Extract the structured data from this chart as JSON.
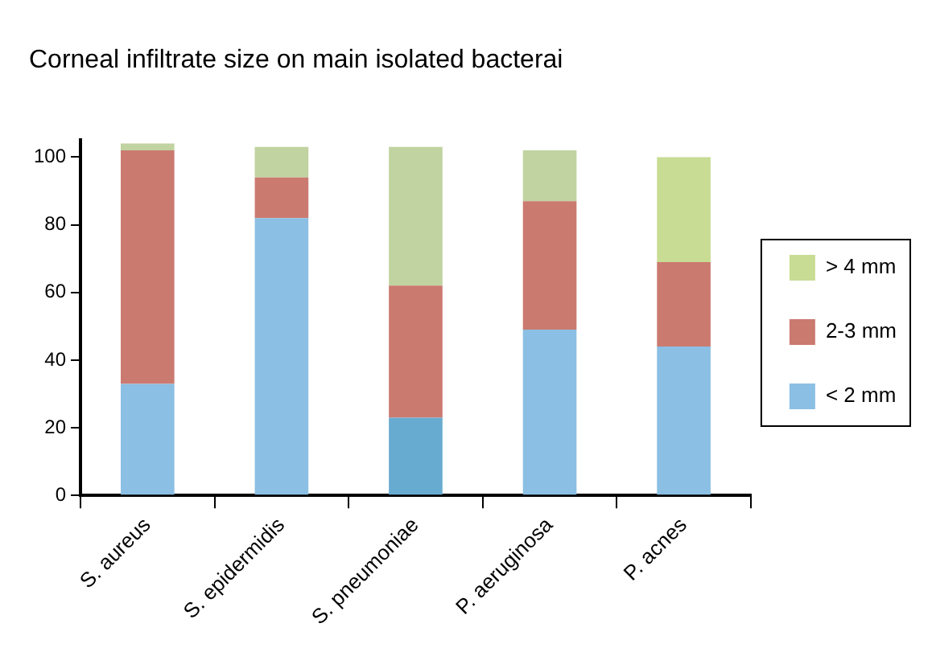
{
  "chart_data": {
    "type": "bar",
    "title": "Corneal infiltrate size on main isolated bacterai",
    "categories": [
      "S. aureus",
      "S. epidermidis",
      "S. pneumoniae",
      "P. aeruginosa",
      "P. acnes"
    ],
    "stacked": true,
    "series": [
      {
        "name": "< 2 mm",
        "color": "#8bbfe3",
        "colors": [
          "#8bbfe3",
          "#8bbfe3",
          "#68abd0",
          "#8bbfe3",
          "#8bbfe3"
        ],
        "values": [
          33,
          82,
          23,
          49,
          44
        ]
      },
      {
        "name": "2-3 mm",
        "color": "#cb7a70",
        "values": [
          69,
          12,
          39,
          38,
          25
        ]
      },
      {
        "name": "> 4 mm",
        "color": "#c8dc94",
        "colors": [
          "#c0d3a0",
          "#c0d3a0",
          "#c0d3a0",
          "#c0d3a0",
          "#c8dc94"
        ],
        "values": [
          2,
          9,
          41,
          15,
          31
        ]
      }
    ],
    "ylim": [
      0,
      105
    ],
    "yticks": [
      0,
      20,
      40,
      60,
      80,
      100
    ],
    "grid": false,
    "legend": "right"
  }
}
